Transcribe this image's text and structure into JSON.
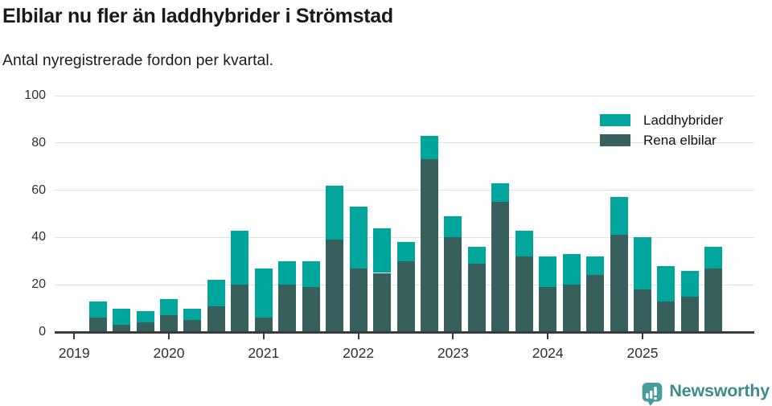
{
  "header": {
    "title": "Elbilar nu fler än laddhybrider i Strömstad",
    "subtitle": "Antal nyregistrerade fordon per kvartal."
  },
  "chart_data": {
    "type": "bar",
    "stacked": true,
    "title": "Elbilar nu fler än laddhybrider i Strömstad",
    "subtitle": "Antal nyregistrerade fordon per kvartal.",
    "categories": [
      "2019 Q1",
      "2019 Q2",
      "2019 Q3",
      "2019 Q4",
      "2020 Q1",
      "2020 Q2",
      "2020 Q3",
      "2020 Q4",
      "2021 Q1",
      "2021 Q2",
      "2021 Q3",
      "2021 Q4",
      "2022 Q1",
      "2022 Q2",
      "2022 Q3",
      "2022 Q4",
      "2023 Q1",
      "2023 Q2",
      "2023 Q3",
      "2023 Q4",
      "2024 Q1",
      "2024 Q2",
      "2024 Q3",
      "2024 Q4",
      "2025 Q1",
      "2025 Q2",
      "2025 Q3",
      "2025 Q4"
    ],
    "series": [
      {
        "name": "Laddhybrider",
        "color": "#00a59c",
        "stack_order": "top",
        "values": [
          0,
          7,
          7,
          5,
          7,
          5,
          11,
          23,
          21,
          10,
          11,
          23,
          26,
          19,
          8,
          10,
          9,
          7,
          8,
          11,
          13,
          13,
          8,
          16,
          22,
          15,
          11,
          9
        ]
      },
      {
        "name": "Rena elbilar",
        "color": "#375f5b",
        "stack_order": "bottom",
        "values": [
          0,
          6,
          3,
          4,
          7,
          5,
          11,
          20,
          6,
          20,
          19,
          39,
          27,
          25,
          30,
          73,
          40,
          29,
          55,
          32,
          19,
          20,
          24,
          41,
          18,
          13,
          15,
          27
        ]
      }
    ],
    "totals": [
      0,
      13,
      10,
      9,
      14,
      10,
      22,
      43,
      27,
      30,
      30,
      62,
      53,
      44,
      38,
      83,
      49,
      36,
      63,
      43,
      32,
      33,
      32,
      57,
      40,
      28,
      26,
      36
    ],
    "x_tick_labels": [
      "2019",
      "2020",
      "2021",
      "2022",
      "2023",
      "2024",
      "2025"
    ],
    "y_ticks": [
      0,
      20,
      40,
      60,
      80,
      100
    ],
    "ylim": [
      0,
      100
    ],
    "grid": "horizontal",
    "legend_position": "top-right"
  },
  "colors": {
    "laddhybrider": "#00a59c",
    "rena_elbilar": "#375f5b",
    "gridline": "#e2e2e2",
    "axis": "#3b3b3b",
    "logo_icon": "#4a9b9c",
    "wordmark": "#3e8b8e"
  },
  "footer": {
    "brand": "Newsworthy",
    "logo_icon": "bar-chart-speech-bubble-icon"
  }
}
